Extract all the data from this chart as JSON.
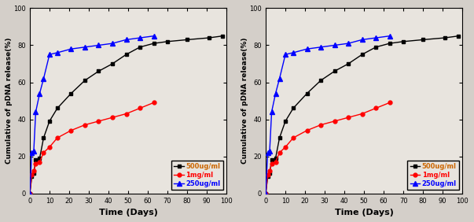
{
  "left_chart": {
    "black_x": [
      0,
      1,
      2,
      3,
      5,
      7,
      10,
      14,
      21,
      28,
      35,
      42,
      49,
      56,
      63,
      70,
      80,
      91,
      98
    ],
    "black_y": [
      0,
      9,
      11,
      18,
      19,
      30,
      39,
      46,
      54,
      61,
      66,
      70,
      75,
      79,
      81,
      82,
      83,
      84,
      85
    ],
    "red_x": [
      0,
      1,
      2,
      3,
      5,
      7,
      10,
      14,
      21,
      28,
      35,
      42,
      49,
      56,
      63
    ],
    "red_y": [
      0,
      10,
      12,
      16,
      17,
      22,
      25,
      30,
      34,
      37,
      39,
      41,
      43,
      46,
      49
    ],
    "blue_x": [
      0,
      1,
      2,
      3,
      5,
      7,
      10,
      14,
      21,
      28,
      35,
      42,
      49,
      56,
      63
    ],
    "blue_y": [
      0,
      22,
      23,
      44,
      54,
      62,
      75,
      76,
      78,
      79,
      80,
      81,
      83,
      84,
      85
    ]
  },
  "right_chart": {
    "black_x": [
      0,
      1,
      2,
      3,
      5,
      7,
      10,
      14,
      21,
      28,
      35,
      42,
      49,
      56,
      63,
      70,
      80,
      91,
      98
    ],
    "black_y": [
      0,
      9,
      11,
      18,
      19,
      30,
      39,
      46,
      54,
      61,
      66,
      70,
      75,
      79,
      81,
      82,
      83,
      84,
      85
    ],
    "red_x": [
      0,
      1,
      2,
      3,
      5,
      7,
      10,
      14,
      21,
      28,
      35,
      42,
      49,
      56,
      63
    ],
    "red_y": [
      0,
      10,
      12,
      16,
      17,
      22,
      25,
      30,
      34,
      37,
      39,
      41,
      43,
      46,
      49
    ],
    "blue_x": [
      0,
      1,
      2,
      3,
      5,
      7,
      10,
      14,
      21,
      28,
      35,
      42,
      49,
      56,
      63
    ],
    "blue_y": [
      0,
      22,
      23,
      44,
      54,
      62,
      75,
      76,
      78,
      79,
      80,
      81,
      83,
      84,
      85
    ]
  },
  "xlabel": "Time (Days)",
  "ylabel": "Cumulative of pDNA release(%)",
  "legend_labels": [
    "500ug/ml",
    "1mg/ml",
    "250ug/ml"
  ],
  "legend_text_colors": [
    "#cc6600",
    "#ff0000",
    "#0000ff"
  ],
  "line_colors": [
    "#000000",
    "#ff0000",
    "#0000ff"
  ],
  "xlim": [
    0,
    100
  ],
  "ylim": [
    0,
    100
  ],
  "xticks": [
    0,
    10,
    20,
    30,
    40,
    50,
    60,
    70,
    80,
    90,
    100
  ],
  "yticks": [
    0,
    20,
    40,
    60,
    80,
    100
  ],
  "fig_background": "#d4cfc9",
  "plot_background": "#e8e4de"
}
